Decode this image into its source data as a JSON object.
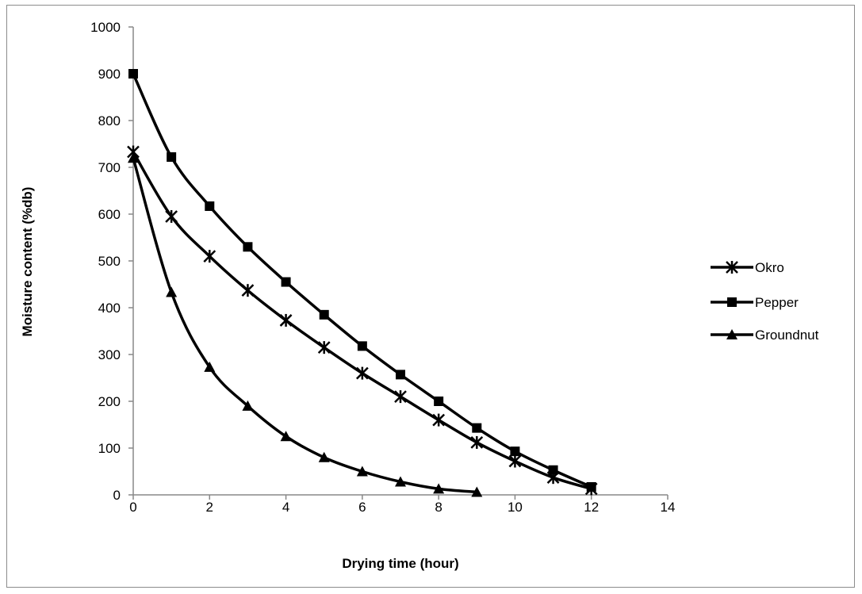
{
  "chart_data": {
    "type": "line",
    "title": "",
    "xlabel": "Drying time (hour)",
    "ylabel": "Moisture content (%db)",
    "xlim": [
      0,
      14
    ],
    "ylim": [
      0,
      1000
    ],
    "xticks": [
      0,
      2,
      4,
      6,
      8,
      10,
      12,
      14
    ],
    "yticks": [
      0,
      100,
      200,
      300,
      400,
      500,
      600,
      700,
      800,
      900,
      1000
    ],
    "grid": false,
    "legend_position": "right",
    "line_color": "#000000",
    "series": [
      {
        "name": "Okro",
        "marker": "x-star",
        "x": [
          0,
          1,
          2,
          3,
          4,
          5,
          6,
          7,
          8,
          9,
          10,
          11,
          12
        ],
        "y": [
          733,
          595,
          510,
          437,
          373,
          315,
          260,
          210,
          160,
          112,
          72,
          37,
          13
        ]
      },
      {
        "name": "Pepper",
        "marker": "square",
        "x": [
          0,
          1,
          2,
          3,
          4,
          5,
          6,
          7,
          8,
          9,
          10,
          11,
          12
        ],
        "y": [
          900,
          722,
          617,
          530,
          455,
          385,
          318,
          257,
          200,
          143,
          93,
          53,
          17
        ]
      },
      {
        "name": "Groundnut",
        "marker": "triangle",
        "x": [
          0,
          1,
          2,
          3,
          4,
          5,
          6,
          7,
          8,
          9
        ],
        "y": [
          720,
          433,
          273,
          190,
          125,
          80,
          50,
          28,
          13,
          6
        ]
      }
    ]
  }
}
